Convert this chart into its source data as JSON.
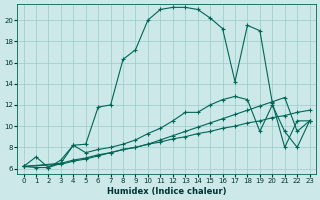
{
  "bg_color": "#cce8e8",
  "grid_color": "#99cccc",
  "line_color": "#006655",
  "xlabel": "Humidex (Indice chaleur)",
  "xlim": [
    -0.5,
    23.5
  ],
  "ylim": [
    5.5,
    21.5
  ],
  "yticks": [
    6,
    8,
    10,
    12,
    14,
    16,
    18,
    20
  ],
  "xticks": [
    0,
    1,
    2,
    3,
    4,
    5,
    6,
    7,
    8,
    9,
    10,
    11,
    12,
    13,
    14,
    15,
    16,
    17,
    18,
    19,
    20,
    21,
    22,
    23
  ],
  "curve1_x": [
    0,
    1,
    2,
    3,
    4,
    5,
    6,
    7,
    8,
    9,
    10,
    11,
    12,
    13,
    14,
    15,
    16,
    17,
    18,
    19,
    20,
    21,
    22,
    23
  ],
  "curve1_y": [
    6.2,
    7.1,
    6.1,
    6.8,
    8.2,
    8.3,
    11.8,
    12.0,
    16.3,
    17.2,
    20.0,
    21.0,
    21.2,
    21.2,
    21.0,
    20.2,
    19.2,
    14.2,
    19.5,
    19.0,
    12.2,
    8.0,
    10.5,
    10.5
  ],
  "curve2_x": [
    0,
    1,
    2,
    3,
    4,
    5,
    6,
    7,
    8,
    9,
    10,
    11,
    12,
    13,
    14,
    15,
    16,
    17,
    18,
    19,
    20,
    21,
    22,
    23
  ],
  "curve2_y": [
    6.2,
    6.1,
    6.1,
    6.5,
    8.2,
    7.5,
    7.8,
    8.0,
    8.3,
    8.7,
    9.3,
    9.8,
    10.5,
    11.3,
    11.3,
    12.0,
    12.5,
    12.8,
    12.5,
    9.5,
    12.0,
    9.5,
    8.0,
    10.5
  ],
  "curve3_x": [
    0,
    3,
    4,
    5,
    6,
    7,
    8,
    9,
    10,
    11,
    12,
    13,
    14,
    15,
    16,
    17,
    18,
    19,
    20,
    21,
    22,
    23
  ],
  "curve3_y": [
    6.2,
    6.5,
    6.8,
    7.0,
    7.3,
    7.5,
    7.8,
    8.0,
    8.3,
    8.5,
    8.8,
    9.0,
    9.3,
    9.5,
    9.8,
    10.0,
    10.3,
    10.5,
    10.8,
    11.0,
    11.3,
    11.5
  ],
  "curve4_x": [
    0,
    3,
    4,
    5,
    6,
    7,
    8,
    9,
    10,
    11,
    12,
    13,
    14,
    15,
    16,
    17,
    18,
    19,
    20,
    21,
    22,
    23
  ],
  "curve4_y": [
    6.2,
    6.4,
    6.7,
    6.9,
    7.2,
    7.5,
    7.8,
    8.0,
    8.3,
    8.7,
    9.1,
    9.5,
    9.9,
    10.3,
    10.7,
    11.1,
    11.5,
    11.9,
    12.3,
    12.7,
    9.5,
    10.5
  ]
}
